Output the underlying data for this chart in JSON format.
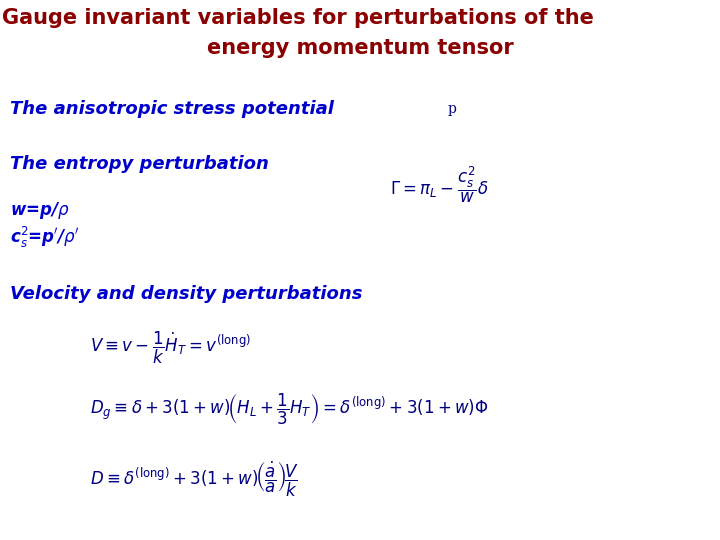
{
  "background_color": "#ffffff",
  "title_line1": "Gauge invariant variables for perturbations of the",
  "title_line2": "energy momentum tensor",
  "title_color": "#8B0000",
  "title_fontsize": 15,
  "section1_text": "The anisotropic stress potential",
  "section1_color": "#0000CC",
  "section1_fontsize": 13,
  "section1_label": "p",
  "section1_label_color": "#000080",
  "section2_text": "The entropy perturbation",
  "section2_color": "#0000CC",
  "section2_fontsize": 13,
  "section3_color": "#0000CC",
  "section3_fontsize": 12,
  "section4_header": "Velocity and density perturbations",
  "section4_color": "#0000CC",
  "section4_fontsize": 13,
  "formula_color": "#000080",
  "formula_fontsize": 12
}
